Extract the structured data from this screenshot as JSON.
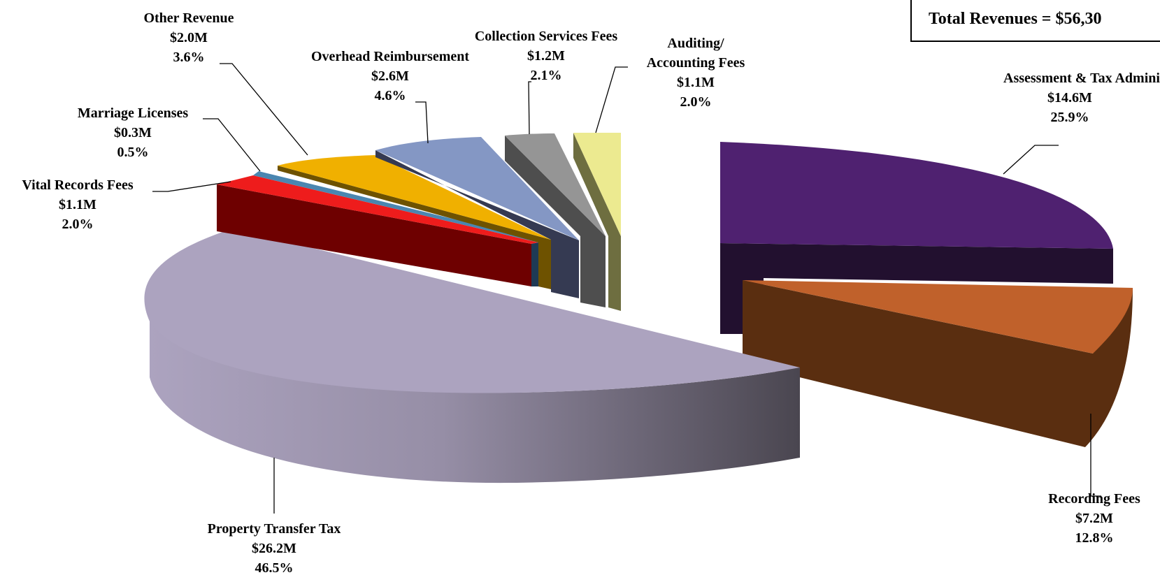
{
  "total_label": "Total Revenues = $56,30",
  "chart_data": {
    "type": "pie",
    "title": "",
    "slices": [
      {
        "label": "Assessment & Tax Administration",
        "amount": "$14.6M",
        "percent": "25.9%",
        "value": 25.9,
        "color": "#4f2170"
      },
      {
        "label": "Recording Fees",
        "amount": "$7.2M",
        "percent": "12.8%",
        "value": 12.8,
        "color": "#c0612b"
      },
      {
        "label": "Property Transfer Tax",
        "amount": "$26.2M",
        "percent": "46.5%",
        "value": 46.5,
        "color": "#aca3bf"
      },
      {
        "label": "Vital Records Fees",
        "amount": "$1.1M",
        "percent": "2.0%",
        "value": 2.0,
        "color": "#ee1c1c"
      },
      {
        "label": "Marriage Licenses",
        "amount": "$0.3M",
        "percent": "0.5%",
        "value": 0.5,
        "color": "#4a86b0"
      },
      {
        "label": "Other Revenue",
        "amount": "$2.0M",
        "percent": "3.6%",
        "value": 3.6,
        "color": "#f0b000"
      },
      {
        "label": "Overhead Reimbursement",
        "amount": "$2.6M",
        "percent": "4.6%",
        "value": 4.6,
        "color": "#8497c4"
      },
      {
        "label": "Collection Services Fees",
        "amount": "$1.2M",
        "percent": "2.1%",
        "value": 2.1,
        "color": "#959595"
      },
      {
        "label": "Auditing/ Accounting Fees",
        "amount": "$1.1M",
        "percent": "2.0%",
        "value": 2.0,
        "color": "#ecea90"
      }
    ],
    "exploded": true,
    "three_d": true,
    "legend": "none"
  }
}
